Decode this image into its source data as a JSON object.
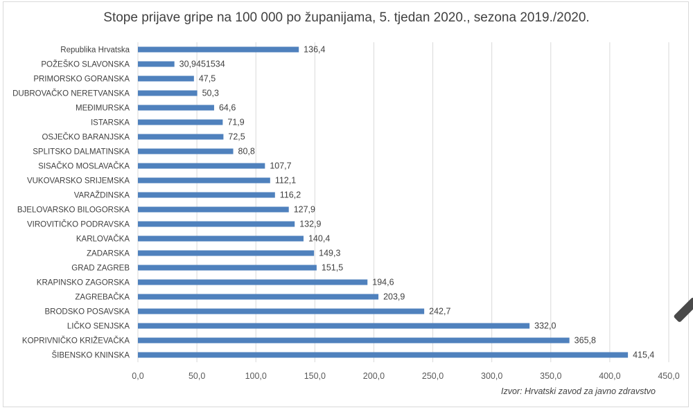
{
  "chart_data": {
    "type": "bar",
    "orientation": "horizontal",
    "title": "Stope prijave gripe na 100 000 po županijama, 5. tjedan 2020., sezona 2019./2020.",
    "source": "Izvor: Hrvatski zavod za javno zdravstvo",
    "xlim": [
      0,
      450
    ],
    "x_ticks": [
      "0,0",
      "50,0",
      "100,0",
      "150,0",
      "200,0",
      "250,0",
      "300,0",
      "350,0",
      "400,0",
      "450,0"
    ],
    "grid": true,
    "bar_color": "#4f81bd",
    "categories": [
      "Republika Hrvatska",
      "POŽEŠKO SLAVONSKA",
      "PRIMORSKO GORANSKA",
      "DUBROVAČKO NERETVANSKA",
      "MEĐIMURSKA",
      "ISTARSKA",
      "OSJEČKO BARANJSKA",
      "SPLITSKO DALMATINSKA",
      "SISAČKO MOSLAVAČKA",
      "VUKOVARSKO SRIJEMSKA",
      "VARAŽDINSKA",
      "BJELOVARSKO BILOGORSKA",
      "VIROVITIČKO PODRAVSKA",
      "KARLOVAČKA",
      "ZADARSKA",
      "GRAD ZAGREB",
      "KRAPINSKO ZAGORSKA",
      "ZAGREBAČKA",
      "BRODSKO POSAVSKA",
      "LIČKO SENJSKA",
      "KOPRIVNIČKO KRIŽEVAČKA",
      "ŠIBENSKO KNINSKA"
    ],
    "values": [
      136.4,
      30.9451534,
      47.5,
      50.3,
      64.6,
      71.9,
      72.5,
      80.8,
      107.7,
      112.1,
      116.2,
      127.9,
      132.9,
      140.4,
      149.3,
      151.5,
      194.6,
      203.9,
      242.7,
      332.0,
      365.8,
      415.4
    ],
    "value_labels": [
      "136,4",
      "30,9451534",
      "47,5",
      "50,3",
      "64,6",
      "71,9",
      "72,5",
      "80,8",
      "107,7",
      "112,1",
      "116,2",
      "127,9",
      "132,9",
      "140,4",
      "149,3",
      "151,5",
      "194,6",
      "203,9",
      "242,7",
      "332,0",
      "365,8",
      "415,4"
    ]
  }
}
